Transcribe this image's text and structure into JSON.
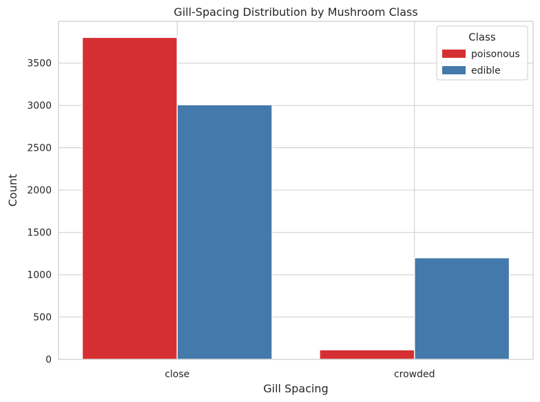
{
  "chart_data": {
    "type": "bar",
    "title": "Gill-Spacing Distribution by Mushroom Class",
    "xlabel": "Gill Spacing",
    "ylabel": "Count",
    "categories": [
      "close",
      "crowded"
    ],
    "series": [
      {
        "name": "poisonous",
        "color": "#d62f33",
        "values": [
          3804,
          112
        ]
      },
      {
        "name": "edible",
        "color": "#4479ab",
        "values": [
          3008,
          1200
        ]
      }
    ],
    "ylim": [
      0,
      3994
    ],
    "yticks": [
      0,
      500,
      1000,
      1500,
      2000,
      2500,
      3000,
      3500
    ],
    "grid": true,
    "legend": {
      "title": "Class",
      "placement": "top-right"
    }
  }
}
